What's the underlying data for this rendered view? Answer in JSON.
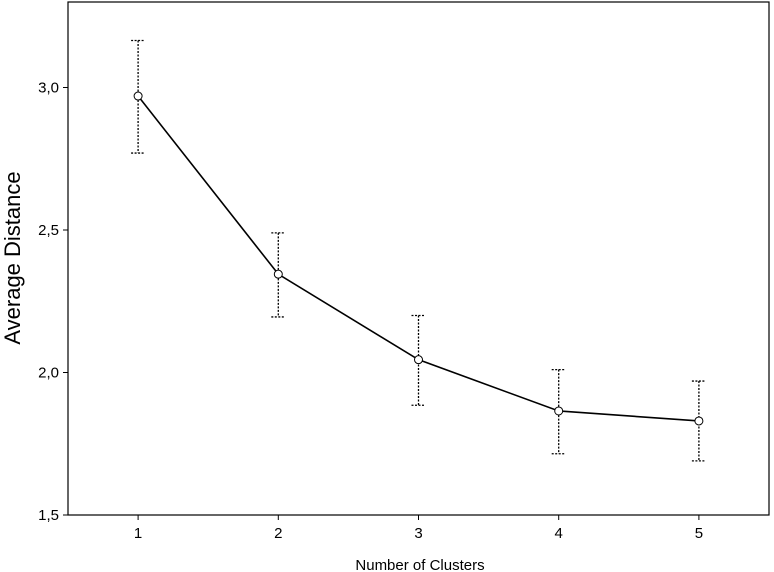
{
  "chart_data": {
    "type": "line",
    "title": "",
    "xlabel": "Number of Clusters",
    "ylabel": "Average Distance",
    "x": [
      1,
      2,
      3,
      4,
      5
    ],
    "xticks": [
      "1",
      "2",
      "3",
      "4",
      "5"
    ],
    "xlim": [
      0.5,
      5.5
    ],
    "ylim": [
      1.5,
      3.3
    ],
    "yticks": [
      {
        "value": 1.5,
        "label": "1,5"
      },
      {
        "value": 2.0,
        "label": "2,0"
      },
      {
        "value": 2.5,
        "label": "2,5"
      },
      {
        "value": 3.0,
        "label": "3,0"
      }
    ],
    "grid": false,
    "legend": "none",
    "series": [
      {
        "values": [
          2.97,
          2.345,
          2.045,
          1.865,
          1.83
        ],
        "error_upper": [
          3.165,
          2.49,
          2.2,
          2.01,
          1.97
        ],
        "error_lower": [
          2.77,
          2.195,
          1.885,
          1.715,
          1.69
        ]
      }
    ],
    "colors": {
      "line": "#000000",
      "marker_fill": "#ffffff",
      "error_bar": "#000000",
      "frame": "#000000"
    }
  }
}
